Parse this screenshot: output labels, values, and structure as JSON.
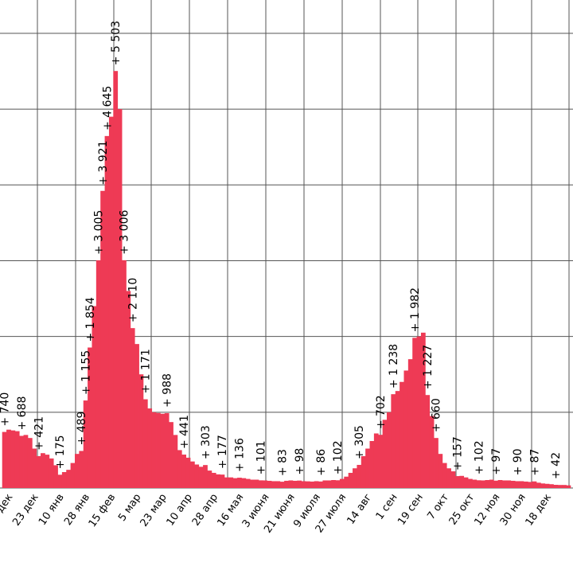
{
  "chart_data": {
    "type": "bar",
    "color": "#ee3a55",
    "grid": true,
    "ylim": [
      0,
      6440
    ],
    "yticks": [
      0,
      1000,
      2000,
      3000,
      4000,
      5000,
      6000
    ],
    "categories": [
      null,
      null,
      "дек",
      null,
      null,
      null,
      null,
      null,
      "23 дек",
      null,
      null,
      null,
      null,
      null,
      "10 янв",
      null,
      null,
      null,
      null,
      null,
      "28 янв",
      null,
      null,
      null,
      null,
      null,
      "15 фев",
      null,
      null,
      null,
      null,
      null,
      "5 мар",
      null,
      null,
      null,
      null,
      null,
      "23 мар",
      null,
      null,
      null,
      null,
      null,
      "10 апр",
      null,
      null,
      null,
      null,
      null,
      "28 апр",
      null,
      null,
      null,
      null,
      null,
      "16 мая",
      null,
      null,
      null,
      null,
      null,
      "3 июня",
      null,
      null,
      null,
      null,
      null,
      "21 июня",
      null,
      null,
      null,
      null,
      null,
      "9 июля",
      null,
      null,
      null,
      null,
      null,
      "27 июля",
      null,
      null,
      null,
      null,
      null,
      "14 авг",
      null,
      null,
      null,
      null,
      null,
      "1 сен",
      null,
      null,
      null,
      null,
      null,
      "19 сен",
      null,
      null,
      null,
      null,
      null,
      "7 окт",
      null,
      null,
      null,
      null,
      null,
      "25 окт",
      null,
      null,
      null,
      null,
      null,
      "12 ноя",
      null,
      null,
      null,
      null,
      null,
      "30 ноя",
      null,
      null,
      null,
      null,
      null,
      "18 дек",
      null,
      null,
      null,
      null
    ],
    "values": [
      740,
      770,
      760,
      750,
      688,
      700,
      660,
      520,
      421,
      460,
      440,
      390,
      300,
      175,
      210,
      240,
      330,
      450,
      489,
      1155,
      1854,
      2400,
      3005,
      3921,
      4645,
      4900,
      5503,
      5000,
      3006,
      2600,
      2110,
      1900,
      1500,
      1171,
      1050,
      1000,
      990,
      980,
      988,
      870,
      700,
      500,
      441,
      400,
      350,
      310,
      280,
      303,
      230,
      200,
      180,
      177,
      140,
      140,
      130,
      136,
      130,
      120,
      110,
      110,
      101,
      100,
      95,
      90,
      90,
      83,
      95,
      100,
      95,
      98,
      90,
      88,
      85,
      90,
      86,
      100,
      100,
      105,
      102,
      120,
      150,
      200,
      260,
      305,
      420,
      520,
      620,
      720,
      702,
      900,
      1000,
      1238,
      1280,
      1400,
      1550,
      1700,
      1982,
      2000,
      2050,
      1227,
      950,
      660,
      450,
      330,
      260,
      220,
      157,
      160,
      140,
      120,
      110,
      102,
      100,
      105,
      110,
      97,
      105,
      100,
      100,
      95,
      90,
      90,
      85,
      80,
      87,
      70,
      60,
      55,
      50,
      42,
      40,
      40,
      35
    ],
    "value_labels": [
      "+ 740",
      null,
      null,
      null,
      "+ 688",
      null,
      null,
      null,
      "+ 421",
      null,
      null,
      null,
      null,
      "+ 175",
      null,
      null,
      null,
      null,
      "+ 489",
      "+ 1 155",
      "+ 1 854",
      null,
      "+ 3 005",
      "+ 3 921",
      "+ 4 645",
      null,
      "+ 5 503",
      null,
      "+ 3 006",
      null,
      "+ 2 110",
      null,
      null,
      "+ 1 171",
      null,
      null,
      null,
      null,
      "+ 988",
      null,
      null,
      null,
      "+ 441",
      null,
      null,
      null,
      null,
      "+ 303",
      null,
      null,
      null,
      "+ 177",
      null,
      null,
      null,
      "+ 136",
      null,
      null,
      null,
      null,
      "+ 101",
      null,
      null,
      null,
      null,
      "+ 83",
      null,
      null,
      null,
      "+ 98",
      null,
      null,
      null,
      null,
      "+ 86",
      null,
      null,
      null,
      "+ 102",
      null,
      null,
      null,
      null,
      "+ 305",
      null,
      null,
      null,
      null,
      "+ 702",
      null,
      null,
      "+ 1 238",
      null,
      null,
      null,
      null,
      "+ 1 982",
      null,
      null,
      "+ 1 227",
      null,
      "+ 660",
      null,
      null,
      null,
      null,
      "+ 157",
      null,
      null,
      null,
      null,
      "+ 102",
      null,
      null,
      null,
      "+ 97",
      null,
      null,
      null,
      null,
      "+ 90",
      null,
      null,
      null,
      "+ 87",
      null,
      null,
      null,
      null,
      "+ 42",
      null,
      null,
      null
    ]
  }
}
